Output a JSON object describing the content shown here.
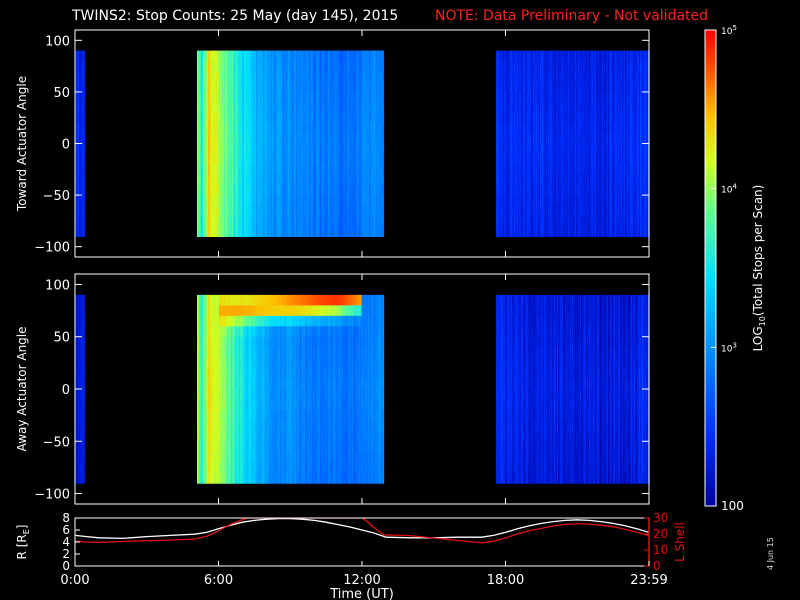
{
  "title": "TWINS2: Stop Counts: 25 May (day 145), 2015",
  "note": "NOTE: Data Preliminary - Not validated",
  "date_stamp": "4 Jun 15",
  "colors": {
    "background": "#000000",
    "note": "#ff2020",
    "r_line": "#ffffff",
    "l_shell_line": "#e01010"
  },
  "chart_data": [
    {
      "type": "heatmap",
      "ylabel": "Toward Actuator Angle",
      "ylim": [
        -110,
        110
      ],
      "yticks": [
        "100",
        "50",
        "0",
        "−50",
        "−100"
      ],
      "xlim_hours": [
        0,
        24
      ],
      "data_blocks_hours": [
        [
          0.0,
          0.4
        ],
        [
          5.1,
          12.9
        ],
        [
          17.6,
          24.0
        ]
      ],
      "angle_range": [
        -90,
        90
      ],
      "log10_counts": {
        "x": [
          0.0,
          0.4,
          5.15,
          5.3,
          5.6,
          6.5,
          7.0,
          8.0,
          9.0,
          10.0,
          11.0,
          12.0,
          12.9,
          17.6,
          19.0,
          21.0,
          23.0,
          24.0
        ],
        "values": [
          2.4,
          2.4,
          4.1,
          3.6,
          4.4,
          3.8,
          3.5,
          3.1,
          3.0,
          2.9,
          2.85,
          2.9,
          3.0,
          2.45,
          2.4,
          2.35,
          2.4,
          2.5
        ]
      }
    },
    {
      "type": "heatmap",
      "ylabel": "Away Actuator Angle",
      "ylim": [
        -110,
        110
      ],
      "yticks": [
        "100",
        "50",
        "0",
        "−50",
        "−100"
      ],
      "xlim_hours": [
        0,
        24
      ],
      "data_blocks_hours": [
        [
          0.0,
          0.4
        ],
        [
          5.1,
          12.9
        ],
        [
          17.6,
          24.0
        ]
      ],
      "angle_range": [
        -90,
        90
      ],
      "log10_counts": {
        "x": [
          0.0,
          0.4,
          5.15,
          5.3,
          5.6,
          6.5,
          7.0,
          8.0,
          9.0,
          10.0,
          11.0,
          12.0,
          12.9,
          17.6,
          19.0,
          21.0,
          23.0,
          24.0
        ],
        "values": [
          2.3,
          2.3,
          4.1,
          3.6,
          4.4,
          3.8,
          3.5,
          3.1,
          3.0,
          2.9,
          2.85,
          2.9,
          3.0,
          2.4,
          2.35,
          2.3,
          2.3,
          2.45
        ]
      },
      "high_band": {
        "x": [
          6.0,
          8.0,
          9.5,
          11.0,
          12.0
        ],
        "angle": [
          75,
          80,
          82,
          85,
          88
        ],
        "log10_counts": [
          4.5,
          4.6,
          4.75,
          4.85,
          4.6
        ]
      }
    },
    {
      "type": "line",
      "xlabel": "Time (UT)",
      "xticks": [
        "0:00",
        "6:00",
        "12:00",
        "18:00",
        "23:59"
      ],
      "xlim_hours": [
        0,
        24
      ],
      "ylabel": "R [R",
      "ylabel_sub": "E",
      "ylabel_close": "]",
      "ylim": [
        0,
        8
      ],
      "yticks": [
        "0",
        "2",
        "4",
        "6",
        "8"
      ],
      "y2label": "L Shell",
      "y2lim": [
        0,
        30
      ],
      "y2ticks": [
        "0",
        "10",
        "20",
        "30"
      ],
      "series": [
        {
          "axis": "R",
          "x": [
            0,
            0.5,
            1,
            2,
            3,
            4,
            5,
            5.5,
            6,
            6.5,
            7,
            7.5,
            8,
            8.5,
            9,
            9.5,
            10,
            10.5,
            11,
            11.5,
            12,
            12.5,
            13,
            14,
            15,
            16,
            17,
            17.5,
            18,
            18.5,
            19,
            19.5,
            20,
            20.5,
            21,
            21.5,
            22,
            22.5,
            23,
            23.5,
            24
          ],
          "values": [
            5.1,
            4.9,
            4.7,
            4.6,
            4.9,
            5.1,
            5.3,
            5.6,
            6.2,
            6.8,
            7.3,
            7.6,
            7.8,
            7.9,
            7.9,
            7.8,
            7.6,
            7.3,
            6.9,
            6.5,
            6.0,
            5.5,
            4.8,
            4.7,
            4.7,
            4.8,
            4.8,
            5.1,
            5.6,
            6.2,
            6.7,
            7.1,
            7.4,
            7.6,
            7.7,
            7.6,
            7.4,
            7.1,
            6.7,
            6.2,
            5.6
          ]
        },
        {
          "axis": "L",
          "x": [
            0,
            0.5,
            1,
            2,
            3,
            4,
            5,
            5.5,
            6,
            6.5,
            7,
            7.2,
            12.0,
            12.2,
            12.5,
            12.9,
            14,
            15,
            16,
            17,
            17.5,
            18,
            18.5,
            19,
            19.5,
            20,
            20.5,
            21,
            21.5,
            22,
            22.5,
            23,
            23.5,
            24
          ],
          "values": [
            15.5,
            15,
            14.8,
            15.3,
            15.8,
            16.2,
            16.8,
            18.5,
            22,
            26,
            29,
            30,
            30,
            28,
            24,
            19.5,
            19,
            17.5,
            16,
            14.5,
            15.5,
            17.5,
            20,
            22,
            23.5,
            25,
            26,
            26.5,
            26.2,
            25.5,
            24.5,
            23,
            21,
            19
          ]
        }
      ]
    }
  ],
  "colorbar": {
    "label": "LOG",
    "label_sub": "10",
    "label_rest": "(Total Stops per Scan)",
    "range_log10": [
      2,
      5
    ],
    "ticks": [
      {
        "exp": "5",
        "value": 5
      },
      {
        "exp": "4",
        "value": 4
      },
      {
        "exp": "3",
        "value": 3
      }
    ],
    "tick_base": "10",
    "bottom_label": "100"
  }
}
